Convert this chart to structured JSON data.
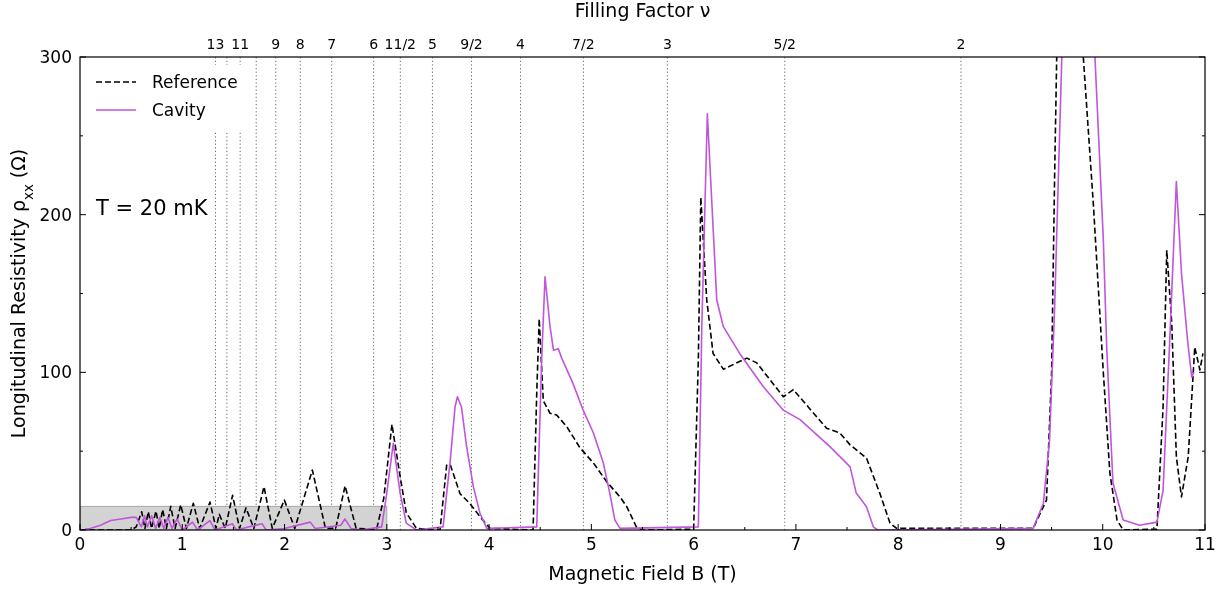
{
  "chart_data": {
    "type": "line",
    "xlabel": "Magnetic Field B (T)",
    "ylabel": "Longitudinal Resistivity ρ$_{xx}$ (Ω)",
    "x2label": "Filling Factor ν",
    "xlim": [
      0,
      11
    ],
    "ylim": [
      0,
      300
    ],
    "xticks": [
      0,
      {
        "value": 0.5,
        "label": null
      },
      1,
      {
        "value": 1.5,
        "label": null
      },
      2,
      {
        "value": 2.5,
        "label": null
      },
      3,
      {
        "value": 3.5,
        "label": null
      },
      4,
      {
        "value": 4.5,
        "label": null
      },
      5,
      {
        "value": 5.5,
        "label": null
      },
      6,
      {
        "value": 6.5,
        "label": null
      },
      7,
      {
        "value": 7.5,
        "label": null
      },
      8,
      {
        "value": 8.5,
        "label": null
      },
      9,
      {
        "value": 9.5,
        "label": null
      },
      10,
      {
        "value": 10.5,
        "label": null
      },
      11
    ],
    "yticks": [
      0,
      {
        "value": 50,
        "label": null
      },
      100,
      {
        "value": 150,
        "label": null
      },
      200,
      {
        "value": 250,
        "label": null
      },
      300
    ],
    "grid": false,
    "legend": "top left",
    "marker": "none",
    "annotations": [
      "T = 20 mK",
      {
        "text": "13",
        "x": 1.325,
        "y": 300
      },
      {
        "text": "11",
        "x": 1.566,
        "y": 300
      },
      {
        "text": "9",
        "x": 1.914,
        "y": 300
      },
      {
        "text": "8",
        "x": 2.154,
        "y": 300
      },
      {
        "text": "7",
        "x": 2.461,
        "y": 300
      },
      {
        "text": "6",
        "x": 2.871,
        "y": 300
      },
      {
        "text": "11/2",
        "x": 3.132,
        "y": 300
      },
      {
        "text": "5",
        "x": 3.446,
        "y": 300
      },
      {
        "text": "9/2",
        "x": 3.828,
        "y": 300
      },
      {
        "text": "4",
        "x": 4.307,
        "y": 300
      },
      {
        "text": "7/2",
        "x": 4.922,
        "y": 300
      },
      {
        "text": "3",
        "x": 5.743,
        "y": 300
      },
      {
        "text": "5/2",
        "x": 6.891,
        "y": 300
      },
      {
        "text": "2",
        "x": 8.614,
        "y": 300
      }
    ],
    "ref_lines": [
      {
        "axis": "x",
        "value": 1.325,
        "label": null,
        "line_style": "dotted",
        "color": "#555555"
      },
      {
        "axis": "x",
        "value": 1.436,
        "label": null,
        "line_style": "dotted",
        "color": "#555555"
      },
      {
        "axis": "x",
        "value": 1.566,
        "label": null,
        "line_style": "dotted",
        "color": "#555555"
      },
      {
        "axis": "x",
        "value": 1.723,
        "label": null,
        "line_style": "dotted",
        "color": "#555555"
      },
      {
        "axis": "x",
        "value": 1.914,
        "label": null,
        "line_style": "dotted",
        "color": "#555555"
      },
      {
        "axis": "x",
        "value": 2.154,
        "label": null,
        "line_style": "dotted",
        "color": "#555555"
      },
      {
        "axis": "x",
        "value": 2.461,
        "label": null,
        "line_style": "dotted",
        "color": "#555555"
      },
      {
        "axis": "x",
        "value": 2.871,
        "label": null,
        "line_style": "dotted",
        "color": "#555555"
      },
      {
        "axis": "x",
        "value": 3.132,
        "label": null,
        "line_style": "dotted",
        "color": "#555555"
      },
      {
        "axis": "x",
        "value": 3.446,
        "label": null,
        "line_style": "dotted",
        "color": "#555555"
      },
      {
        "axis": "x",
        "value": 3.828,
        "label": null,
        "line_style": "dotted",
        "color": "#555555"
      },
      {
        "axis": "x",
        "value": 4.307,
        "label": null,
        "line_style": "dotted",
        "color": "#555555"
      },
      {
        "axis": "x",
        "value": 4.922,
        "label": null,
        "line_style": "dotted",
        "color": "#555555"
      },
      {
        "axis": "x",
        "value": 5.743,
        "label": null,
        "line_style": "dotted",
        "color": "#555555"
      },
      {
        "axis": "x",
        "value": 6.891,
        "label": null,
        "line_style": "dotted",
        "color": "#555555"
      },
      {
        "axis": "x",
        "value": 8.614,
        "label": null,
        "line_style": "dotted",
        "color": "#555555"
      }
    ],
    "series": [
      {
        "type": "area",
        "color": "#d3d3d3",
        "x": [
          0,
          3
        ],
        "values": [
          15,
          15
        ]
      },
      {
        "name": "Reference",
        "color": "#000000",
        "line_style": "dashed",
        "x": [
          0,
          0.5,
          0.55,
          0.603,
          0.635,
          0.668,
          0.7,
          0.743,
          0.775,
          0.808,
          0.845,
          0.887,
          0.93,
          0.985,
          1.04,
          1.108,
          1.17,
          1.271,
          1.33,
          1.362,
          1.42,
          1.492,
          1.56,
          1.623,
          1.7,
          1.799,
          1.88,
          1.998,
          2.1,
          2.272,
          2.4,
          2.5,
          2.592,
          2.7,
          2.9,
          2.97,
          3.05,
          3.13,
          3.19,
          3.29,
          3.52,
          3.585,
          3.62,
          3.716,
          3.81,
          3.91,
          4.01,
          4.43,
          4.466,
          4.49,
          4.53,
          4.596,
          4.66,
          4.76,
          4.89,
          5.02,
          5.15,
          5.28,
          5.346,
          5.44,
          5.5,
          6.0,
          6.046,
          6.07,
          6.128,
          6.19,
          6.29,
          6.52,
          6.617,
          6.877,
          6.975,
          7.3,
          7.43,
          7.53,
          7.69,
          7.82,
          7.92,
          7.985,
          9.32,
          9.45,
          9.5,
          9.53,
          9.55,
          9.56,
          9.81,
          9.91,
          10.006,
          10.07,
          10.14,
          10.2,
          10.53,
          10.59,
          10.626,
          10.675,
          10.72,
          10.77,
          10.836,
          10.9,
          10.95,
          10.98
        ],
        "values": [
          0,
          0,
          2,
          11.6,
          1,
          11.6,
          1,
          12,
          1,
          13,
          1,
          15,
          1,
          16,
          1,
          17,
          1,
          17.7,
          1,
          10,
          1,
          22,
          1,
          14,
          1,
          27.5,
          1,
          19,
          1,
          38,
          1,
          1,
          28,
          1,
          0.5,
          20,
          67,
          34,
          11,
          1,
          0,
          41,
          41.5,
          23,
          17,
          8.5,
          1,
          0,
          87,
          134,
          82,
          74,
          73,
          65.5,
          52,
          42.5,
          30.6,
          21,
          14.8,
          2,
          0,
          0.5,
          108,
          211,
          146,
          112,
          102,
          109,
          106,
          84.5,
          89,
          64.5,
          61.5,
          54,
          45.6,
          23.4,
          4.4,
          1,
          1,
          19,
          99.5,
          226,
          300,
          null,
          300,
          205,
          99.6,
          36,
          6.3,
          0,
          0.5,
          78,
          177.5,
          131,
          46.5,
          21,
          46.5,
          116,
          101.5,
          112
        ]
      },
      {
        "name": "Cavity",
        "color": "#c155dc",
        "line_style": "solid",
        "x": [
          0.05,
          0.1,
          0.2,
          0.3,
          0.4,
          0.5,
          0.55,
          0.6,
          0.63,
          0.66,
          0.7,
          0.74,
          0.78,
          0.82,
          0.86,
          0.9,
          0.95,
          1.0,
          1.1,
          1.15,
          1.27,
          1.32,
          1.49,
          1.53,
          1.78,
          1.82,
          2.0,
          2.25,
          2.3,
          2.55,
          2.59,
          2.65,
          2.75,
          2.95,
          3.0,
          3.063,
          3.13,
          3.19,
          3.29,
          3.55,
          3.62,
          3.667,
          3.69,
          3.73,
          3.78,
          3.846,
          3.91,
          3.977,
          4.466,
          4.514,
          4.547,
          4.596,
          4.63,
          4.677,
          4.71,
          4.82,
          4.92,
          5.02,
          5.117,
          5.18,
          5.23,
          5.28,
          6.046,
          6.08,
          6.134,
          6.226,
          6.29,
          6.45,
          6.68,
          6.877,
          7.04,
          7.33,
          7.53,
          7.59,
          7.69,
          7.757,
          7.8,
          9.32,
          9.42,
          9.48,
          9.53,
          9.6,
          9.7,
          9.924,
          10.006,
          10.04,
          10.1,
          10.2,
          10.36,
          10.53,
          10.59,
          10.655,
          10.72,
          10.77,
          10.83,
          10.87,
          10.89
        ],
        "values": [
          0.5,
          1,
          3,
          6,
          7,
          8,
          8,
          2,
          9,
          2,
          9,
          1,
          8,
          1,
          8,
          1,
          7,
          0,
          5,
          0,
          6,
          0,
          4,
          0,
          4,
          0,
          1,
          5,
          1,
          3,
          7,
          1,
          0,
          2,
          23.5,
          55,
          23.5,
          4.4,
          0,
          2,
          44,
          78,
          84.5,
          78,
          53,
          27.5,
          10.8,
          1,
          2,
          108,
          160.6,
          129,
          114,
          115,
          109,
          93,
          76,
          61.5,
          42.5,
          23.4,
          6.3,
          1,
          2,
          129,
          264,
          146,
          129,
          112,
          91,
          76,
          70,
          53,
          40,
          23.4,
          14.8,
          2,
          0,
          1,
          17,
          57,
          141.6,
          300,
          null,
          300,
          184,
          114,
          29.8,
          6.3,
          3,
          5,
          25,
          120,
          221,
          163,
          120,
          97,
          100
        ]
      }
    ]
  }
}
